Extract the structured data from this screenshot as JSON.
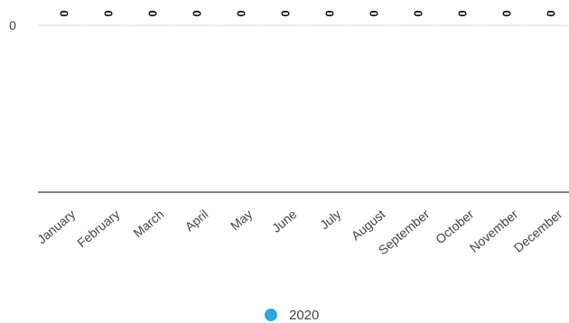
{
  "chart_data": {
    "type": "bar",
    "categories": [
      "January",
      "February",
      "March",
      "April",
      "May",
      "June",
      "July",
      "August",
      "September",
      "October",
      "November",
      "December"
    ],
    "series": [
      {
        "name": "2020",
        "values": [
          0,
          0,
          0,
          0,
          0,
          0,
          0,
          0,
          0,
          0,
          0,
          0
        ],
        "color": "#29a8e0"
      }
    ],
    "y_ticks": [
      "0"
    ],
    "data_labels": [
      "0",
      "0",
      "0",
      "0",
      "0",
      "0",
      "0",
      "0",
      "0",
      "0",
      "0",
      "0"
    ],
    "legend": {
      "position": "bottom",
      "entries": [
        "2020"
      ]
    },
    "grid": true,
    "colors": {
      "axis": "#333333",
      "grid": "#e0e0e0",
      "text": "#444444"
    }
  }
}
